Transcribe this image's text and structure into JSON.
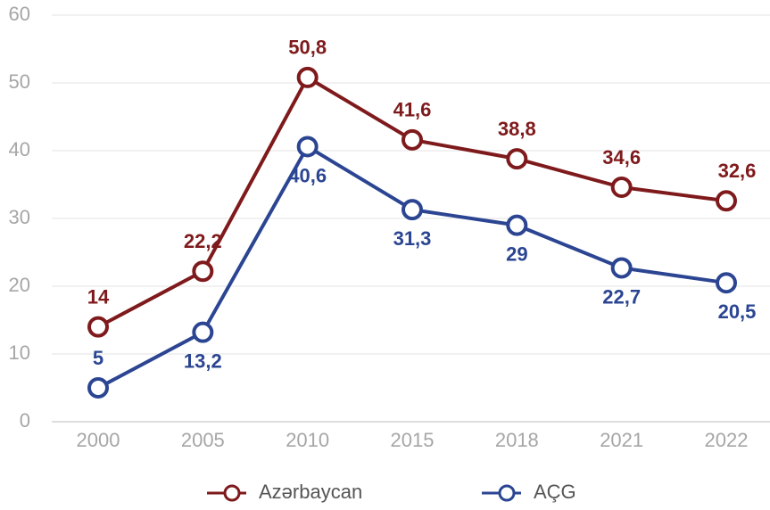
{
  "chart_data": {
    "type": "line",
    "categories": [
      "2000",
      "2005",
      "2010",
      "2015",
      "2018",
      "2021",
      "2022"
    ],
    "series": [
      {
        "name": "Azərbaycan",
        "color": "#7f1a1c",
        "values": [
          14,
          22.2,
          50.8,
          41.6,
          38.8,
          34.6,
          32.6
        ],
        "value_labels": [
          "14",
          "22,2",
          "50,8",
          "41,6",
          "38,8",
          "34,6",
          "32,6"
        ]
      },
      {
        "name": "AÇG",
        "color": "#2b4592",
        "values": [
          5,
          13.2,
          40.6,
          31.3,
          29,
          22.7,
          20.5
        ],
        "value_labels": [
          "5",
          "13,2",
          "40,6",
          "31,3",
          "29",
          "22,7",
          "20,5"
        ]
      }
    ],
    "ylim": [
      0,
      60
    ],
    "yticks": [
      0,
      10,
      20,
      30,
      40,
      50,
      60
    ],
    "grid": true,
    "legend": "bottom"
  }
}
